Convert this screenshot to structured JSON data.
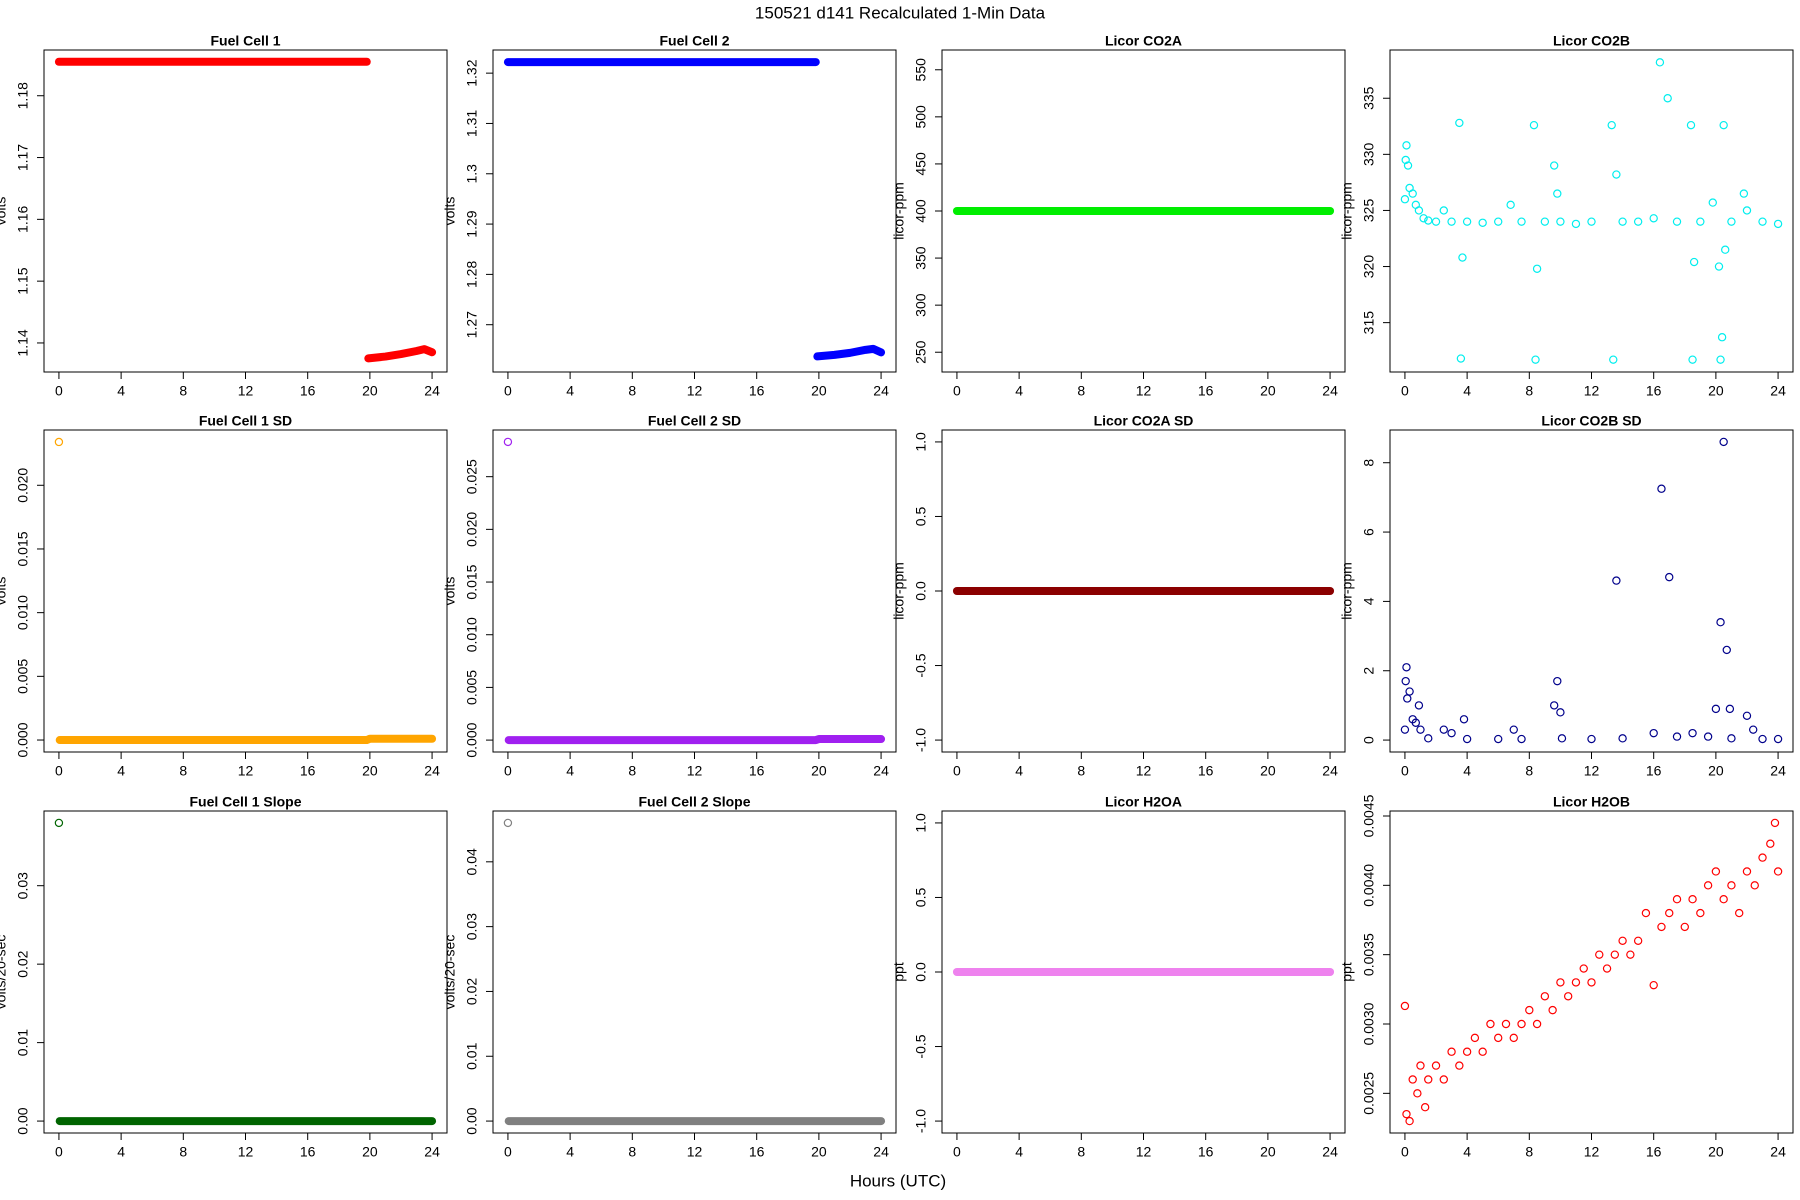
{
  "page": {
    "title": "150521   d141   Recalculated 1-Min Data",
    "xlabel": "Hours (UTC)"
  },
  "chart_data": [
    {
      "type": "line",
      "title": "Fuel Cell 1",
      "ylabel": "volts",
      "color": "#ff0000",
      "x": [
        0,
        19.8,
        19.85,
        19.9,
        21,
        22,
        23,
        23.5,
        24
      ],
      "values": [
        1.1855,
        1.1855,
        null,
        1.1375,
        1.1378,
        1.1382,
        1.1387,
        1.139,
        1.1385
      ],
      "xlim": [
        -0.96,
        24.96
      ],
      "xticks": [
        0,
        4,
        8,
        12,
        16,
        20,
        24
      ],
      "ylim": [
        1.1353,
        1.1874
      ],
      "yticks": [
        1.14,
        1.15,
        1.16,
        1.17,
        1.18
      ]
    },
    {
      "type": "line",
      "title": "Fuel Cell 2",
      "ylabel": "volts",
      "color": "#0000ff",
      "x": [
        0,
        19.8,
        19.85,
        19.9,
        21,
        22,
        23,
        23.5,
        24
      ],
      "values": [
        1.3222,
        1.3222,
        null,
        1.2637,
        1.264,
        1.2644,
        1.265,
        1.2652,
        1.2645
      ],
      "xlim": [
        -0.96,
        24.96
      ],
      "xticks": [
        0,
        4,
        8,
        12,
        16,
        20,
        24
      ],
      "ylim": [
        1.2606,
        1.3246
      ],
      "yticks": [
        1.27,
        1.28,
        1.29,
        1.3,
        1.31,
        1.32
      ]
    },
    {
      "type": "line",
      "title": "Licor CO2A",
      "ylabel": "licor-ppm",
      "color": "#00ee00",
      "x": [
        0,
        24
      ],
      "values": [
        400,
        400
      ],
      "xlim": [
        -0.96,
        24.96
      ],
      "xticks": [
        0,
        4,
        8,
        12,
        16,
        20,
        24
      ],
      "ylim": [
        229,
        571
      ],
      "yticks": [
        250,
        300,
        350,
        400,
        450,
        500,
        550
      ]
    },
    {
      "type": "scatter",
      "title": "Licor CO2B",
      "ylabel": "licor-ppm",
      "color": "#00eeee",
      "x": [
        0,
        0.05,
        0.1,
        0.2,
        0.3,
        0.5,
        0.7,
        0.9,
        1.2,
        1.5,
        2,
        2.5,
        3,
        3.5,
        3.6,
        3.7,
        4,
        5,
        6,
        6.8,
        7.5,
        8.3,
        8.4,
        8.5,
        9,
        9.6,
        9.8,
        10,
        11,
        12,
        13.3,
        13.4,
        13.6,
        14,
        15,
        16,
        16.4,
        16.9,
        17.5,
        18.4,
        18.5,
        18.6,
        19,
        19.8,
        20.2,
        20.3,
        20.4,
        20.5,
        20.6,
        21,
        21.8,
        22,
        23,
        24
      ],
      "values": [
        326,
        329.5,
        330.8,
        329,
        327,
        326.5,
        325.5,
        325,
        324.3,
        324.1,
        324,
        325,
        324,
        332.8,
        311.8,
        320.8,
        324,
        323.9,
        324,
        325.5,
        324,
        332.6,
        311.7,
        319.8,
        324,
        329,
        326.5,
        324,
        323.8,
        324,
        332.6,
        311.7,
        328.2,
        324,
        324,
        324.3,
        338.2,
        335,
        324,
        332.6,
        311.7,
        320.4,
        324,
        325.7,
        320,
        311.7,
        313.7,
        332.6,
        321.5,
        324,
        326.5,
        325,
        324,
        323.8
      ],
      "xlim": [
        -0.96,
        24.96
      ],
      "xticks": [
        0,
        4,
        8,
        12,
        16,
        20,
        24
      ],
      "ylim": [
        310.6,
        339.3
      ],
      "yticks": [
        315,
        320,
        325,
        330,
        335
      ]
    },
    {
      "type": "line",
      "title": "Fuel Cell 1 SD",
      "ylabel": "volts",
      "color": "#ffa500",
      "x": [
        0,
        0,
        0.05,
        19.8,
        20,
        24
      ],
      "values": [
        0.0234,
        null,
        0,
        0,
        0.0001,
        0.0001
      ],
      "xlim": [
        -0.96,
        24.96
      ],
      "xticks": [
        0,
        4,
        8,
        12,
        16,
        20,
        24
      ],
      "ylim": [
        -0.00094,
        0.02434
      ],
      "yticks": [
        {
          "value": 0,
          "label": "0.000"
        },
        0.005,
        {
          "value": 0.01,
          "label": "0.010"
        },
        0.015,
        {
          "value": 0.02,
          "label": "0.020"
        }
      ]
    },
    {
      "type": "line",
      "title": "Fuel Cell 2 SD",
      "ylabel": "volts",
      "color": "#a020f0",
      "x": [
        0,
        0,
        0.05,
        19.8,
        20,
        24
      ],
      "values": [
        0.0283,
        null,
        0,
        0,
        0.0001,
        0.0001
      ],
      "xlim": [
        -0.96,
        24.96
      ],
      "xticks": [
        0,
        4,
        8,
        12,
        16,
        20,
        24
      ],
      "ylim": [
        -0.00113,
        0.02943
      ],
      "yticks": [
        {
          "value": 0,
          "label": "0.000"
        },
        0.005,
        {
          "value": 0.01,
          "label": "0.010"
        },
        0.015,
        {
          "value": 0.02,
          "label": "0.020"
        },
        0.025
      ]
    },
    {
      "type": "line",
      "title": "Licor CO2A SD",
      "ylabel": "licor-ppm",
      "color": "#8b0000",
      "x": [
        0,
        24
      ],
      "values": [
        0,
        0
      ],
      "xlim": [
        -0.96,
        24.96
      ],
      "xticks": [
        0,
        4,
        8,
        12,
        16,
        20,
        24
      ],
      "ylim": [
        -1.08,
        1.08
      ],
      "yticks": [
        {
          "value": -1,
          "label": "-1.0"
        },
        -0.5,
        {
          "value": 0,
          "label": "0.0"
        },
        0.5,
        {
          "value": 1,
          "label": "1.0"
        }
      ]
    },
    {
      "type": "scatter",
      "title": "Licor CO2B SD",
      "ylabel": "licor-ppm",
      "color": "#00008b",
      "x": [
        0,
        0.05,
        0.1,
        0.15,
        0.3,
        0.5,
        0.7,
        0.9,
        1,
        1.5,
        2.5,
        3,
        3.8,
        4,
        6,
        7,
        7.5,
        9.6,
        9.8,
        10,
        10.1,
        12,
        13.6,
        14,
        16,
        16.5,
        17,
        17.5,
        18.5,
        19.5,
        20,
        20.3,
        20.5,
        20.7,
        20.9,
        21,
        22,
        22.4,
        23,
        24
      ],
      "values": [
        0.3,
        1.7,
        2.1,
        1.2,
        1.4,
        0.6,
        0.5,
        1,
        0.3,
        0.05,
        0.3,
        0.2,
        0.6,
        0.03,
        0.03,
        0.3,
        0.03,
        1,
        1.7,
        0.8,
        0.05,
        0.03,
        4.6,
        0.05,
        0.2,
        7.25,
        4.7,
        0.1,
        0.2,
        0.1,
        0.9,
        3.4,
        8.6,
        2.6,
        0.9,
        0.05,
        0.7,
        0.3,
        0.03,
        0.03
      ],
      "xlim": [
        -0.96,
        24.96
      ],
      "xticks": [
        0,
        4,
        8,
        12,
        16,
        20,
        24
      ],
      "ylim": [
        -0.344,
        8.944
      ],
      "yticks": [
        0,
        2,
        4,
        6,
        8
      ]
    },
    {
      "type": "line",
      "title": "Fuel Cell 1 Slope",
      "ylabel": "volts/20-sec",
      "color": "#006400",
      "x": [
        0,
        0,
        0.05,
        24
      ],
      "values": [
        0.038,
        null,
        0,
        0
      ],
      "xlim": [
        -0.96,
        24.96
      ],
      "xticks": [
        0,
        4,
        8,
        12,
        16,
        20,
        24
      ],
      "ylim": [
        -0.00152,
        0.03952
      ],
      "yticks": [
        {
          "value": 0,
          "label": "0.00"
        },
        0.01,
        0.02,
        0.03
      ]
    },
    {
      "type": "line",
      "title": "Fuel Cell 2 Slope",
      "ylabel": "volts/20-sec",
      "color": "#808080",
      "x": [
        0,
        0,
        0.05,
        24
      ],
      "values": [
        0.046,
        null,
        0,
        0
      ],
      "xlim": [
        -0.96,
        24.96
      ],
      "xticks": [
        0,
        4,
        8,
        12,
        16,
        20,
        24
      ],
      "ylim": [
        -0.00184,
        0.04784
      ],
      "yticks": [
        {
          "value": 0,
          "label": "0.00"
        },
        0.01,
        0.02,
        0.03,
        0.04
      ]
    },
    {
      "type": "line",
      "title": "Licor H2OA",
      "ylabel": "ppt",
      "color": "#ee82ee",
      "x": [
        0,
        24
      ],
      "values": [
        0,
        0
      ],
      "xlim": [
        -0.96,
        24.96
      ],
      "xticks": [
        0,
        4,
        8,
        12,
        16,
        20,
        24
      ],
      "ylim": [
        -1.08,
        1.08
      ],
      "yticks": [
        {
          "value": -1,
          "label": "-1.0"
        },
        -0.5,
        {
          "value": 0,
          "label": "0.0"
        },
        0.5,
        {
          "value": 1,
          "label": "1.0"
        }
      ]
    },
    {
      "type": "scatter",
      "title": "Licor H2OB",
      "ylabel": "ppt",
      "color": "#ff0000",
      "x": [
        0,
        0.1,
        0.3,
        0.5,
        0.8,
        1,
        1.3,
        1.5,
        2,
        2.5,
        3,
        3.5,
        4,
        4.5,
        5,
        5.5,
        6,
        6.5,
        7,
        7.5,
        8,
        8.5,
        9,
        9.5,
        10,
        10.5,
        11,
        11.5,
        12,
        12.5,
        13,
        13.5,
        14,
        14.5,
        15,
        15.5,
        16,
        16.5,
        17,
        17.5,
        18,
        18.5,
        19,
        19.5,
        20,
        20.5,
        21,
        21.5,
        22,
        22.5,
        23,
        23.5,
        23.8,
        24
      ],
      "values": [
        0.00313,
        0.00235,
        0.0023,
        0.0026,
        0.0025,
        0.0027,
        0.0024,
        0.0026,
        0.0027,
        0.0026,
        0.0028,
        0.0027,
        0.0028,
        0.0029,
        0.0028,
        0.003,
        0.0029,
        0.003,
        0.0029,
        0.003,
        0.0031,
        0.003,
        0.0032,
        0.0031,
        0.0033,
        0.0032,
        0.0033,
        0.0034,
        0.0033,
        0.0035,
        0.0034,
        0.0035,
        0.0036,
        0.0035,
        0.0036,
        0.0038,
        0.00328,
        0.0037,
        0.0038,
        0.0039,
        0.0037,
        0.0039,
        0.0038,
        0.004,
        0.0041,
        0.0039,
        0.004,
        0.0038,
        0.0041,
        0.004,
        0.0042,
        0.0043,
        0.00445,
        0.0041
      ],
      "xlim": [
        -0.96,
        24.96
      ],
      "xticks": [
        0,
        4,
        8,
        12,
        16,
        20,
        24
      ],
      "ylim": [
        0.002214,
        0.004536
      ],
      "yticks": [
        0.0025,
        {
          "value": 0.003,
          "label": "0.0030"
        },
        0.0035,
        {
          "value": 0.004,
          "label": "0.0040"
        },
        0.0045
      ]
    }
  ]
}
